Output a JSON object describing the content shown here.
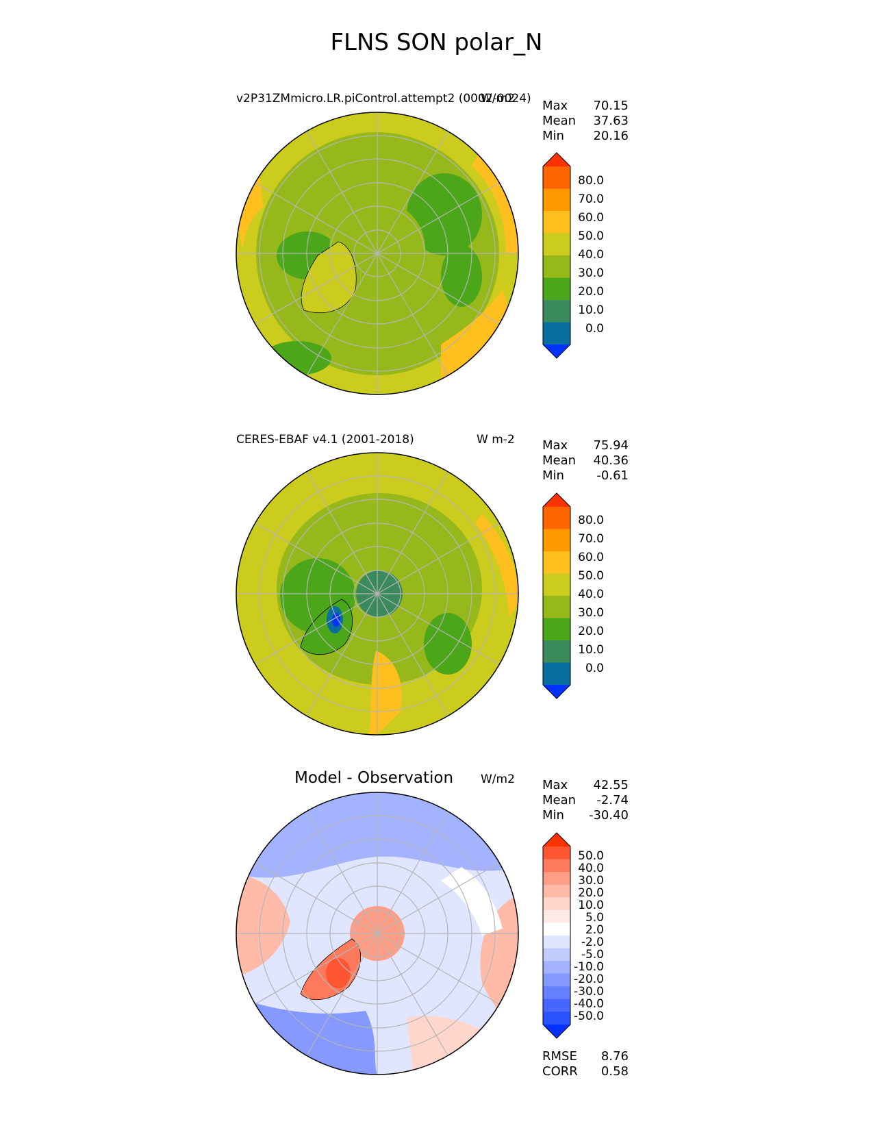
{
  "title": "FLNS SON polar_N",
  "panels": [
    {
      "id": "model",
      "title": "v2P31ZMmicro.LR.piControl.attempt2 (0002-0024)",
      "units": "W/m2",
      "stats": [
        {
          "name": "Max",
          "value": "70.15"
        },
        {
          "name": "Mean",
          "value": "37.63"
        },
        {
          "name": "Min",
          "value": "20.16"
        }
      ],
      "colorbar": {
        "ticks": [
          "80.0",
          "70.0",
          "60.0",
          "50.0",
          "40.0",
          "30.0",
          "20.0",
          "10.0",
          "0.0"
        ],
        "colors": [
          "#ff3300",
          "#ff6600",
          "#ff9900",
          "#ffbf1f",
          "#cccc1f",
          "#97b81a",
          "#4ca619",
          "#3a8a5c",
          "#0a6e9e",
          "#0033ff"
        ]
      }
    },
    {
      "id": "obs",
      "title": "CERES-EBAF v4.1 (2001-2018)",
      "units": "W m-2",
      "stats": [
        {
          "name": "Max",
          "value": "75.94"
        },
        {
          "name": "Mean",
          "value": "40.36"
        },
        {
          "name": "Min",
          "value": "-0.61"
        }
      ],
      "colorbar": {
        "ticks": [
          "80.0",
          "70.0",
          "60.0",
          "50.0",
          "40.0",
          "30.0",
          "20.0",
          "10.0",
          "0.0"
        ],
        "colors": [
          "#ff3300",
          "#ff6600",
          "#ff9900",
          "#ffbf1f",
          "#cccc1f",
          "#97b81a",
          "#4ca619",
          "#3a8a5c",
          "#0a6e9e",
          "#0033ff"
        ]
      }
    },
    {
      "id": "diff",
      "title": "Model - Observation",
      "units": "W/m2",
      "stats": [
        {
          "name": "Max",
          "value": "42.55"
        },
        {
          "name": "Mean",
          "value": "-2.74"
        },
        {
          "name": "Min",
          "value": "-30.40"
        }
      ],
      "metrics": [
        {
          "name": "RMSE",
          "value": "8.76"
        },
        {
          "name": "CORR",
          "value": "0.58"
        }
      ],
      "colorbar": {
        "ticks": [
          "50.0",
          "40.0",
          "30.0",
          "20.0",
          "10.0",
          "5.0",
          "2.0",
          "-2.0",
          "-5.0",
          "-10.0",
          "-20.0",
          "-30.0",
          "-40.0",
          "-50.0"
        ],
        "colors": [
          "#ff3300",
          "#ff5533",
          "#ff7a5c",
          "#ff9d85",
          "#ffbaa8",
          "#ffd6cc",
          "#ffeae5",
          "#ffffff",
          "#e0e6ff",
          "#c2cdff",
          "#a3b3ff",
          "#8599ff",
          "#6680ff",
          "#4766ff",
          "#2952ff",
          "#0033ff"
        ]
      }
    }
  ],
  "chart_data": [
    {
      "type": "heatmap",
      "title": "v2P31ZMmicro.LR.piControl.attempt2 (0002-0024)",
      "projection": "north polar stereographic",
      "units": "W/m2",
      "max": 70.15,
      "mean": 37.63,
      "min": 20.16,
      "levels": [
        0,
        10,
        20,
        30,
        40,
        50,
        60,
        70,
        80
      ]
    },
    {
      "type": "heatmap",
      "title": "CERES-EBAF v4.1 (2001-2018)",
      "projection": "north polar stereographic",
      "units": "W m-2",
      "max": 75.94,
      "mean": 40.36,
      "min": -0.61,
      "levels": [
        0,
        10,
        20,
        30,
        40,
        50,
        60,
        70,
        80
      ]
    },
    {
      "type": "heatmap",
      "title": "Model - Observation",
      "projection": "north polar stereographic",
      "units": "W/m2",
      "max": 42.55,
      "mean": -2.74,
      "min": -30.4,
      "rmse": 8.76,
      "corr": 0.58,
      "levels": [
        -50,
        -40,
        -30,
        -20,
        -10,
        -5,
        -2,
        2,
        5,
        10,
        20,
        30,
        40,
        50
      ]
    }
  ]
}
